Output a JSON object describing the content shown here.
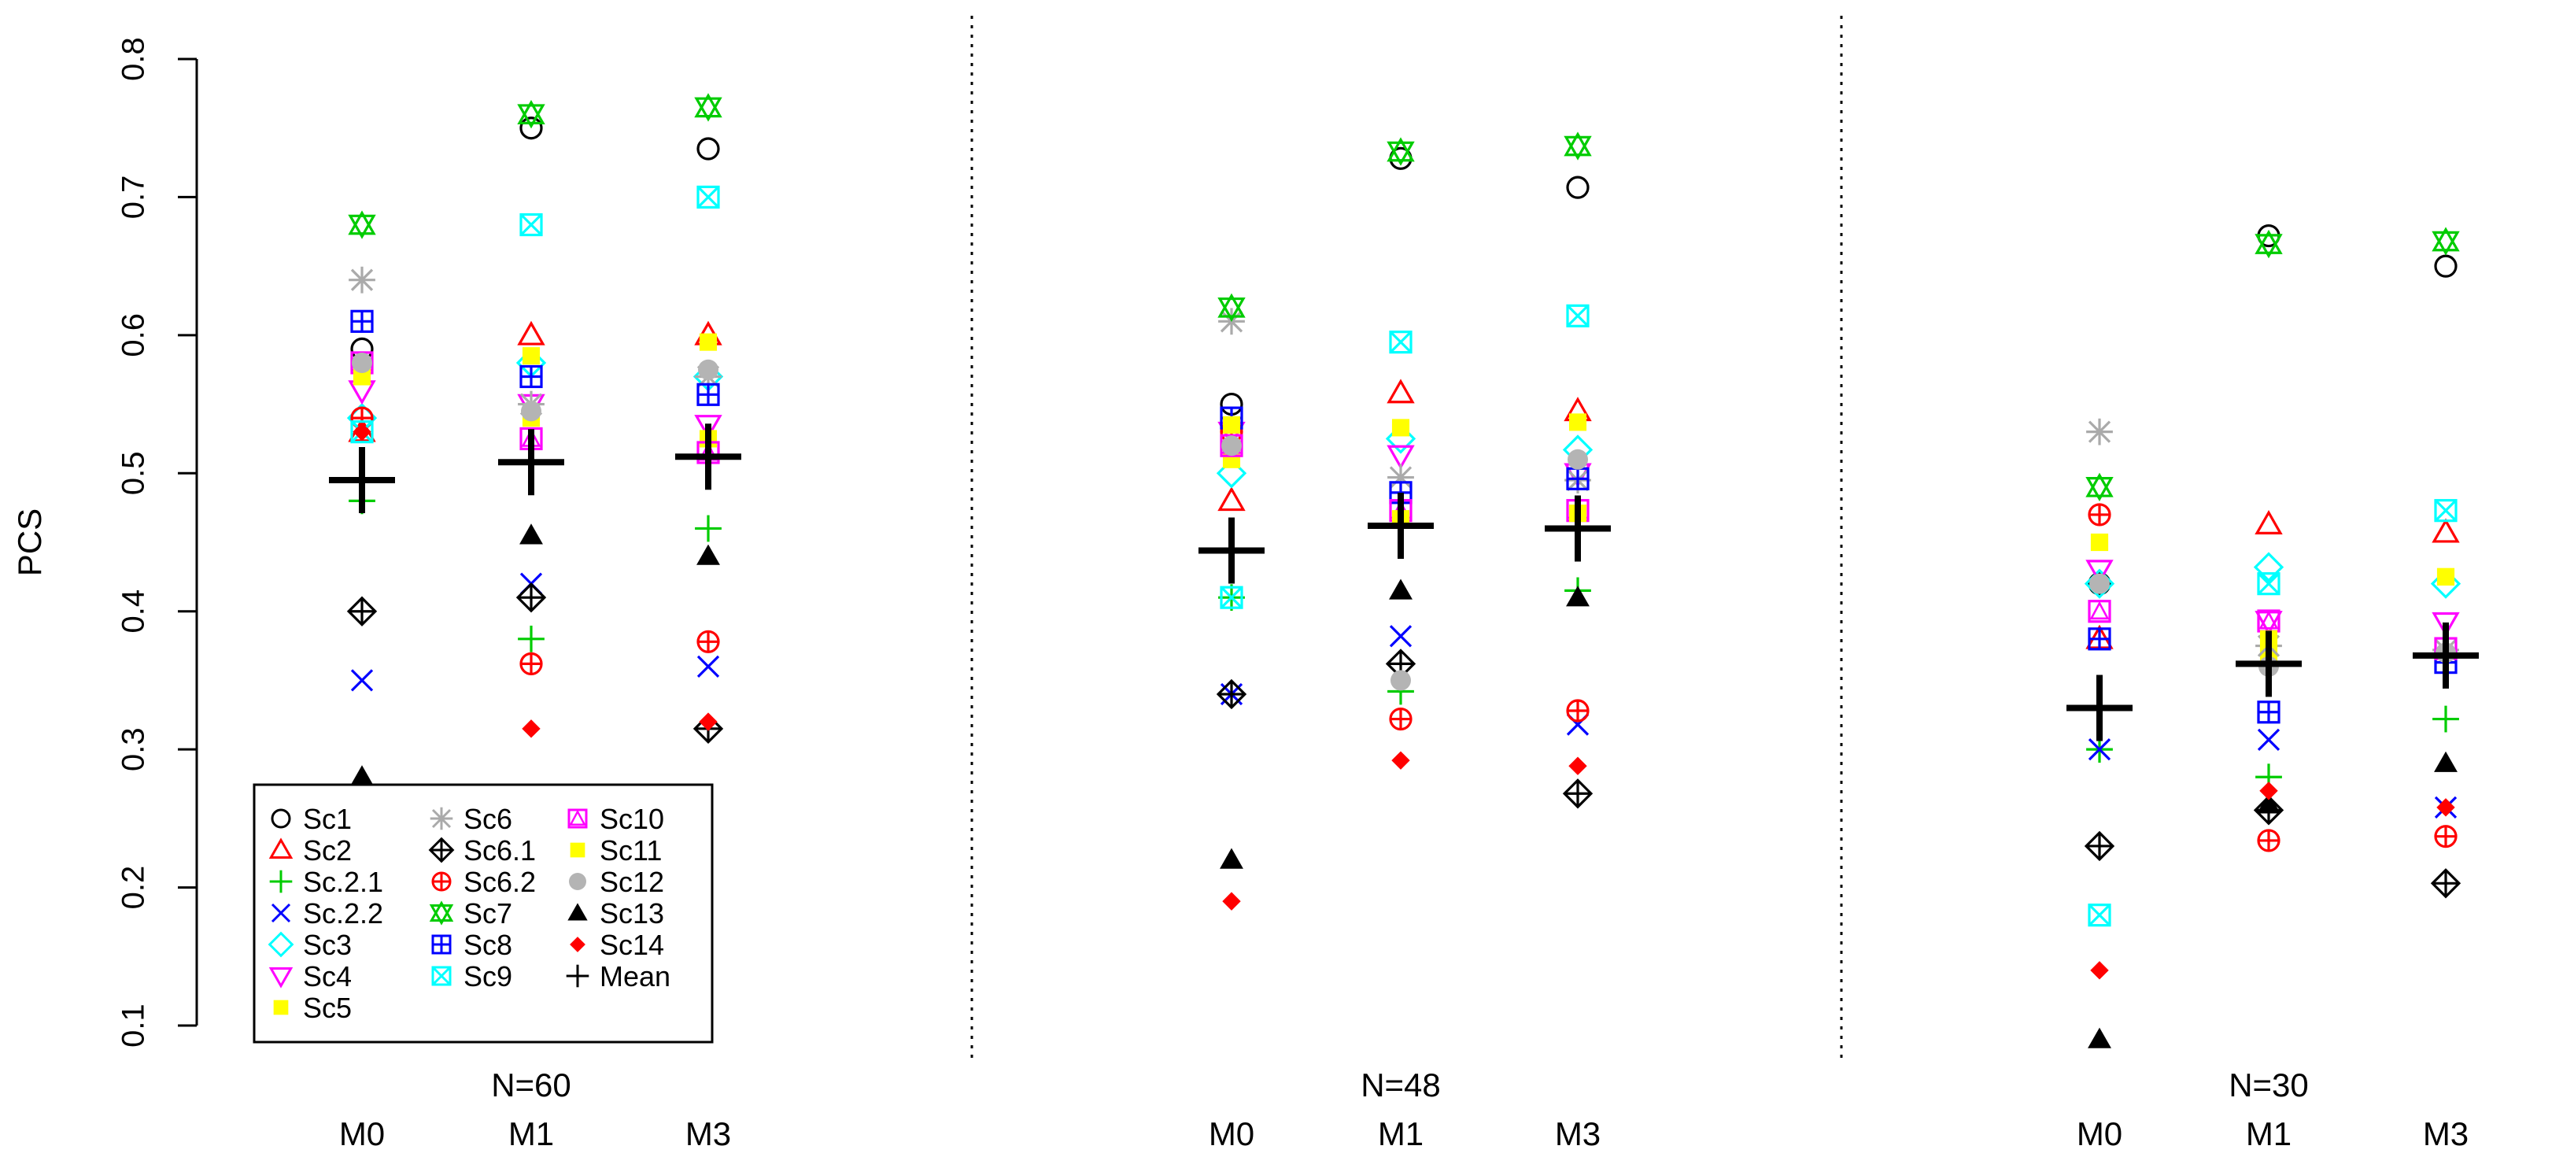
{
  "chart_data": {
    "type": "scatter",
    "ylabel": "PCS",
    "ylim": [
      0.1,
      0.8
    ],
    "yticks": [
      "0.1",
      "0.2",
      "0.3",
      "0.4",
      "0.5",
      "0.6",
      "0.7",
      "0.8"
    ],
    "panels": [
      {
        "label": "N=60",
        "methods": [
          "M0",
          "M1",
          "M3"
        ],
        "series": {
          "Sc1": [
            0.59,
            0.75,
            0.735
          ],
          "Sc2": [
            0.53,
            0.6,
            0.6
          ],
          "Sc.2.1": [
            0.48,
            0.38,
            0.46
          ],
          "Sc.2.2": [
            0.35,
            0.42,
            0.36
          ],
          "Sc3": [
            0.54,
            0.58,
            0.57
          ],
          "Sc4": [
            0.56,
            0.55,
            0.535
          ],
          "Sc5": [
            0.57,
            0.54,
            0.525
          ],
          "Sc6": [
            0.64,
            0.55,
            0.57
          ],
          "Sc6.1": [
            0.4,
            0.41,
            0.315
          ],
          "Sc6.2": [
            0.54,
            0.362,
            0.378
          ],
          "Sc7": [
            0.68,
            0.76,
            0.765
          ],
          "Sc8": [
            0.61,
            0.57,
            0.557
          ],
          "Sc9": [
            0.53,
            0.68,
            0.7
          ],
          "Sc10": [
            0.58,
            0.525,
            0.515
          ],
          "Sc11": [
            0.57,
            0.585,
            0.595
          ],
          "Sc12": [
            0.58,
            0.545,
            0.575
          ],
          "Sc13": [
            0.28,
            0.455,
            0.44
          ],
          "Sc14": [
            0.53,
            0.315,
            0.32
          ],
          "Mean": [
            0.495,
            0.508,
            0.512
          ]
        }
      },
      {
        "label": "N=48",
        "methods": [
          "M0",
          "M1",
          "M3"
        ],
        "series": {
          "Sc1": [
            0.55,
            0.728,
            0.707
          ],
          "Sc2": [
            0.48,
            0.558,
            0.545
          ],
          "Sc.2.1": [
            0.41,
            0.342,
            0.415
          ],
          "Sc.2.2": [
            0.34,
            0.382,
            0.318
          ],
          "Sc3": [
            0.5,
            0.525,
            0.517
          ],
          "Sc4": [
            0.53,
            0.513,
            0.5
          ],
          "Sc5": [
            0.51,
            0.533,
            0.537
          ],
          "Sc6": [
            0.61,
            0.497,
            0.495
          ],
          "Sc6.1": [
            0.34,
            0.362,
            0.268
          ],
          "Sc6.2": [
            0.53,
            0.322,
            0.328
          ],
          "Sc7": [
            0.62,
            0.733,
            0.737
          ],
          "Sc8": [
            0.54,
            0.486,
            0.496
          ],
          "Sc9": [
            0.41,
            0.595,
            0.614
          ],
          "Sc10": [
            0.52,
            0.473,
            0.473
          ],
          "Sc11": [
            0.535,
            0.467,
            0.471
          ],
          "Sc12": [
            0.52,
            0.35,
            0.51
          ],
          "Sc13": [
            0.22,
            0.415,
            0.41
          ],
          "Sc14": [
            0.19,
            0.292,
            0.288
          ],
          "Mean": [
            0.444,
            0.462,
            0.46
          ]
        }
      },
      {
        "label": "N=30",
        "methods": [
          "M0",
          "M1",
          "M3"
        ],
        "series": {
          "Sc1": [
            0.42,
            0.672,
            0.65
          ],
          "Sc2": [
            0.38,
            0.463,
            0.457
          ],
          "Sc.2.1": [
            0.3,
            0.28,
            0.322
          ],
          "Sc.2.2": [
            0.3,
            0.307,
            0.258
          ],
          "Sc3": [
            0.42,
            0.432,
            0.42
          ],
          "Sc4": [
            0.43,
            0.393,
            0.392
          ],
          "Sc5": [
            0.45,
            0.37,
            0.425
          ],
          "Sc6": [
            0.53,
            0.375,
            0.372
          ],
          "Sc6.1": [
            0.23,
            0.256,
            0.203
          ],
          "Sc6.2": [
            0.47,
            0.234,
            0.237
          ],
          "Sc7": [
            0.49,
            0.666,
            0.668
          ],
          "Sc8": [
            0.38,
            0.327,
            0.363
          ],
          "Sc9": [
            0.18,
            0.42,
            0.473
          ],
          "Sc10": [
            0.4,
            0.393,
            0.373
          ],
          "Sc11": [
            0.45,
            0.38,
            0.425
          ],
          "Sc12": [
            0.42,
            0.36,
            0.37
          ],
          "Sc13": [
            0.09,
            0.26,
            0.29
          ],
          "Sc14": [
            0.14,
            0.27,
            0.258
          ],
          "Mean": [
            0.33,
            0.362,
            0.368
          ]
        }
      }
    ],
    "legend": [
      {
        "name": "Sc1",
        "symbol": "circle",
        "color": "#000000"
      },
      {
        "name": "Sc2",
        "symbol": "triangle",
        "color": "#ff0000"
      },
      {
        "name": "Sc.2.1",
        "symbol": "plus",
        "color": "#00cc00"
      },
      {
        "name": "Sc.2.2",
        "symbol": "cross",
        "color": "#0000ff"
      },
      {
        "name": "Sc3",
        "symbol": "diamond",
        "color": "#00ffff"
      },
      {
        "name": "Sc4",
        "symbol": "triangle-down",
        "color": "#ff00ff"
      },
      {
        "name": "Sc5",
        "symbol": "square-filled",
        "color": "#ffff00"
      },
      {
        "name": "Sc6",
        "symbol": "asterisk",
        "color": "#aaaaaa"
      },
      {
        "name": "Sc6.1",
        "symbol": "diamond-plus",
        "color": "#000000"
      },
      {
        "name": "Sc6.2",
        "symbol": "circle-plus",
        "color": "#ff0000"
      },
      {
        "name": "Sc7",
        "symbol": "star-of-david",
        "color": "#00cc00"
      },
      {
        "name": "Sc8",
        "symbol": "square-plus",
        "color": "#0000ff"
      },
      {
        "name": "Sc9",
        "symbol": "square-cross",
        "color": "#00ffff"
      },
      {
        "name": "Sc10",
        "symbol": "square-triangle",
        "color": "#ff00ff"
      },
      {
        "name": "Sc11",
        "symbol": "square-filled",
        "color": "#ffff00"
      },
      {
        "name": "Sc12",
        "symbol": "circle-filled",
        "color": "#b4b4b4"
      },
      {
        "name": "Sc13",
        "symbol": "triangle-filled",
        "color": "#000000"
      },
      {
        "name": "Sc14",
        "symbol": "diamond-filled",
        "color": "#ff0000"
      },
      {
        "name": "Mean",
        "symbol": "plus",
        "color": "#000000"
      }
    ]
  }
}
